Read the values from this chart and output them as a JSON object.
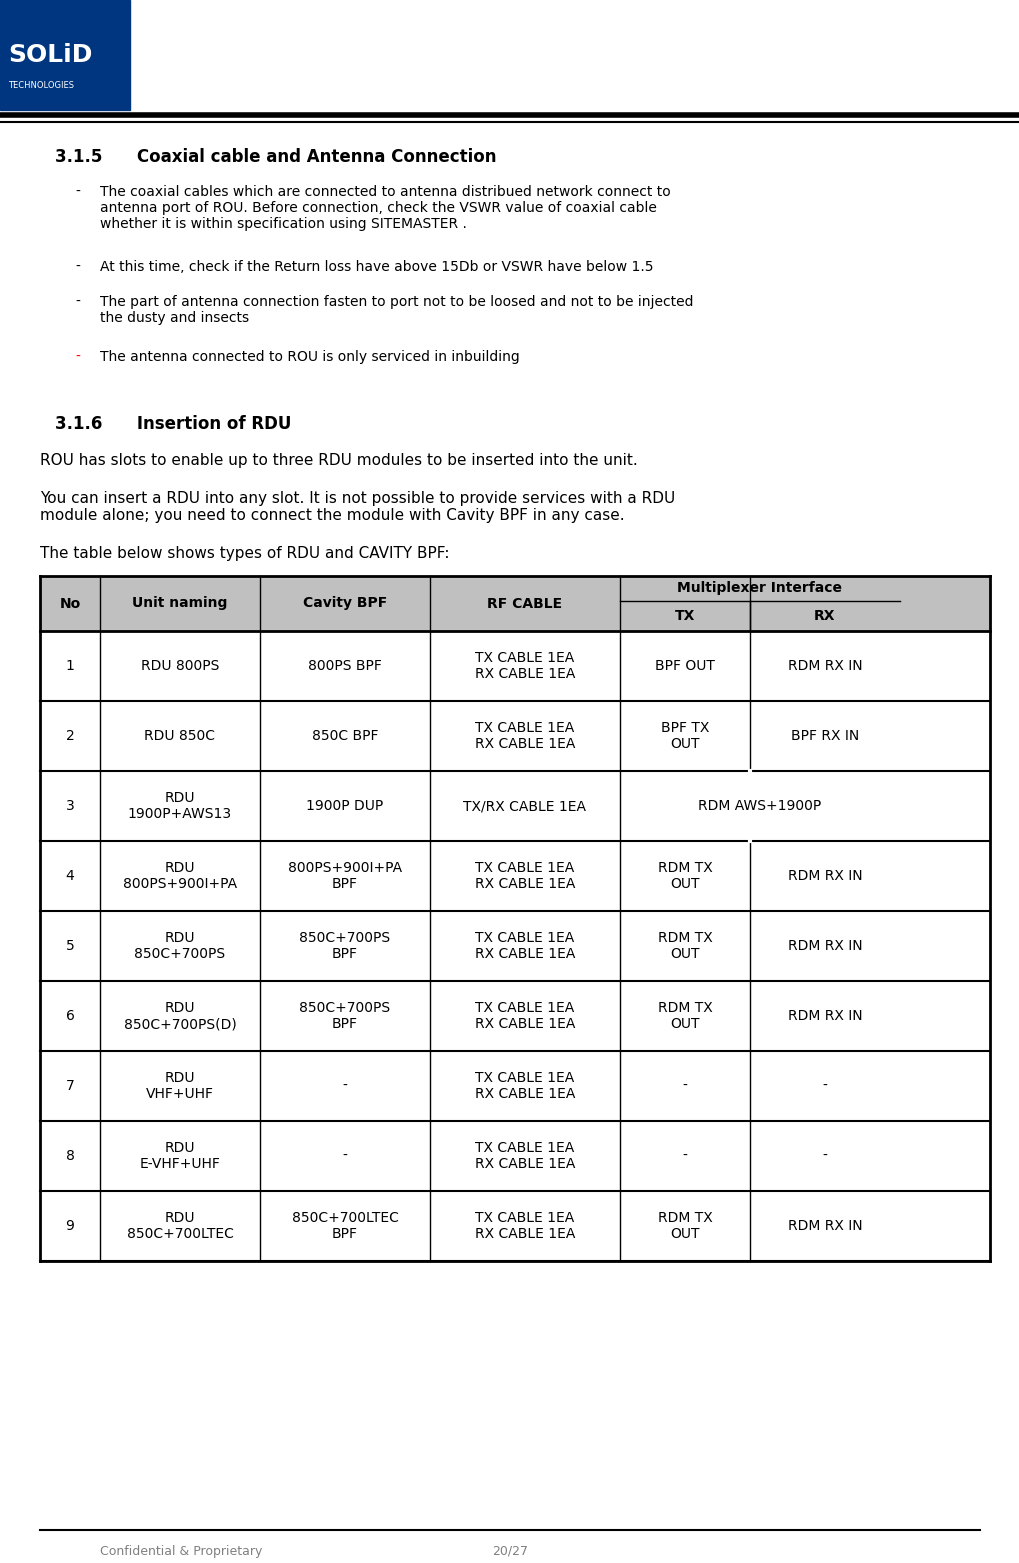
{
  "page_header_left": "Confidential & Proprietary",
  "page_header_right": "20/27",
  "section_315_title": "3.1.5      Coaxial cable and Antenna Connection",
  "bullets_315": [
    "The coaxial cables which are connected to antenna distribued network connect to\nantenna port of ROU. Before connection, check the VSWR value of coaxial cable\nwhether it is within specification using SITEMASTER .",
    "At this time, check if the Return loss have above 15Db or VSWR have below 1.5",
    "The part of antenna connection fasten to port not to be loosed and not to be injected\nthe dusty and insects"
  ],
  "bullet_315_red": "The antenna connected to ROU is only serviced in inbuilding",
  "section_316_title": "3.1.6      Insertion of RDU",
  "para_316_1": "ROU has slots to enable up to three RDU modules to be inserted into the unit.",
  "para_316_2": "You can insert a RDU into any slot. It is not possible to provide services with a RDU\nmodule alone; you need to connect the module with Cavity BPF in any case.",
  "para_316_3": "The table below shows types of RDU and CAVITY BPF:",
  "table_header": [
    "No",
    "Unit naming",
    "Cavity BPF",
    "RF CABLE",
    "Multiplexer Interface",
    ""
  ],
  "table_subheader": [
    "",
    "",
    "",
    "",
    "TX",
    "RX"
  ],
  "table_rows": [
    [
      "1",
      "RDU 800PS",
      "800PS BPF",
      "TX CABLE 1EA\nRX CABLE 1EA",
      "BPF OUT",
      "RDM RX IN"
    ],
    [
      "2",
      "RDU 850C",
      "850C BPF",
      "TX CABLE 1EA\nRX CABLE 1EA",
      "BPF TX\nOUT",
      "BPF RX IN"
    ],
    [
      "3",
      "RDU\n1900P+AWS13",
      "1900P DUP",
      "TX/RX CABLE 1EA",
      "RDM AWS+1900P",
      ""
    ],
    [
      "4",
      "RDU\n800PS+900I+PA",
      "800PS+900I+PA\nBPF",
      "TX CABLE 1EA\nRX CABLE 1EA",
      "RDM TX\nOUT",
      "RDM RX IN"
    ],
    [
      "5",
      "RDU\n850C+700PS",
      "850C+700PS\nBPF",
      "TX CABLE 1EA\nRX CABLE 1EA",
      "RDM TX\nOUT",
      "RDM RX IN"
    ],
    [
      "6",
      "RDU\n850C+700PS(D)",
      "850C+700PS\nBPF",
      "TX CABLE 1EA\nRX CABLE 1EA",
      "RDM TX\nOUT",
      "RDM RX IN"
    ],
    [
      "7",
      "RDU\nVHF+UHF",
      "-",
      "TX CABLE 1EA\nRX CABLE 1EA",
      "-",
      "-"
    ],
    [
      "8",
      "RDU\nE-VHF+UHF",
      "-",
      "TX CABLE 1EA\nRX CABLE 1EA",
      "-",
      "-"
    ],
    [
      "9",
      "RDU\n850C+700LTEC",
      "850C+700LTEC\nBPF",
      "TX CABLE 1EA\nRX CABLE 1EA",
      "RDM TX\nOUT",
      "RDM RX IN"
    ]
  ],
  "logo_blue_color": "#003580",
  "header_bg_color": "#c0c0c0",
  "row_bg_white": "#ffffff",
  "border_color": "#000000",
  "footer_line_color": "#000000",
  "header_line_color": "#000000"
}
